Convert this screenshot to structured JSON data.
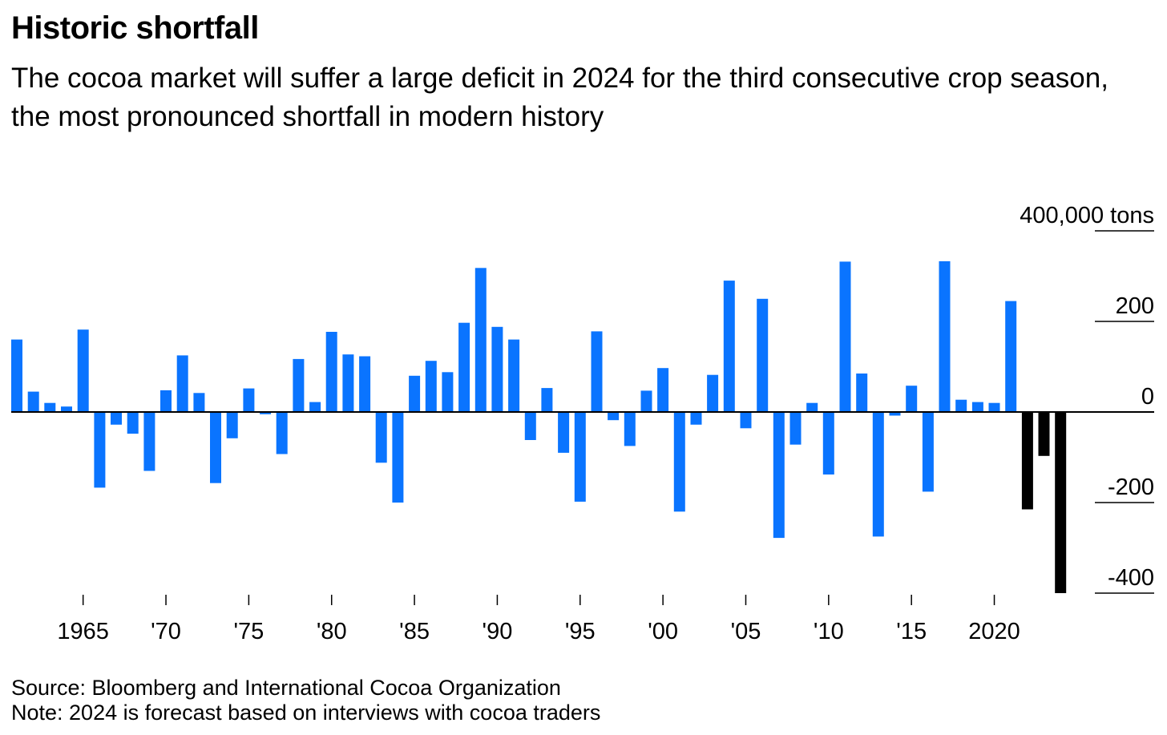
{
  "header": {
    "title": "Historic shortfall",
    "subtitle": "The cocoa market will suffer a large deficit in 2024 for the third consecutive crop season, the most pronounced shortfall in modern history"
  },
  "footer": {
    "source": "Source: Bloomberg and International Cocoa Organization",
    "note": "Note: 2024 is forecast based on interviews with cocoa traders"
  },
  "colors": {
    "actual": "#0A74FF",
    "forecast_deficit": "#000000"
  },
  "chart_data": {
    "type": "bar",
    "unit_label": "400,000 tons",
    "y_tick_labels": [
      "400,000 tons",
      "200",
      "0",
      "-200",
      "-400"
    ],
    "x_tick_labels": [
      "1965",
      "'70",
      "'75",
      "'80",
      "'85",
      "'90",
      "'95",
      "'00",
      "'05",
      "'10",
      "'15",
      "2020"
    ],
    "ylim": [
      -400,
      400
    ],
    "x": [
      1961,
      1962,
      1963,
      1964,
      1965,
      1966,
      1967,
      1968,
      1969,
      1970,
      1971,
      1972,
      1973,
      1974,
      1975,
      1976,
      1977,
      1978,
      1979,
      1980,
      1981,
      1982,
      1983,
      1984,
      1985,
      1986,
      1987,
      1988,
      1989,
      1990,
      1991,
      1992,
      1993,
      1994,
      1995,
      1996,
      1997,
      1998,
      1999,
      2000,
      2001,
      2002,
      2003,
      2004,
      2005,
      2006,
      2007,
      2008,
      2009,
      2010,
      2011,
      2012,
      2013,
      2014,
      2015,
      2016,
      2017,
      2018,
      2019,
      2020,
      2021,
      2022,
      2023,
      2024
    ],
    "values": [
      160,
      45,
      20,
      12,
      182,
      -167,
      -28,
      -48,
      -130,
      48,
      125,
      42,
      -157,
      -58,
      52,
      -5,
      -93,
      117,
      22,
      177,
      127,
      123,
      -112,
      -200,
      80,
      113,
      88,
      197,
      318,
      188,
      160,
      -62,
      53,
      -90,
      -198,
      178,
      -18,
      -75,
      47,
      97,
      -220,
      -28,
      82,
      290,
      -36,
      250,
      -278,
      -72,
      20,
      -138,
      332,
      85,
      -275,
      -8,
      58,
      -176,
      333,
      27,
      22,
      20,
      245,
      -215,
      -97,
      -400
    ],
    "highlight": {
      "description_years": [
        2022,
        2023,
        2024
      ]
    },
    "grid": false,
    "legend": "none"
  }
}
